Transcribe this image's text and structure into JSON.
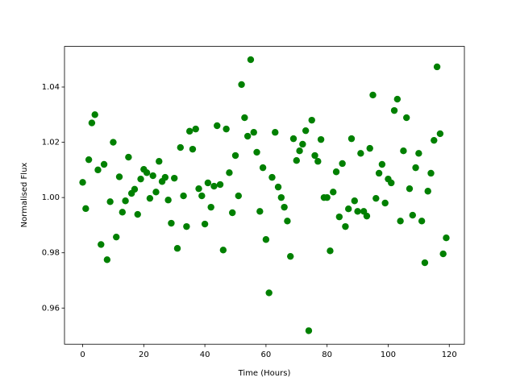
{
  "chart_data": {
    "type": "scatter",
    "xlabel": "Time (Hours)",
    "ylabel": "Normalised Flux",
    "color": "#008000",
    "x": [
      0,
      1,
      2,
      3,
      4,
      5,
      6,
      7,
      8,
      9,
      10,
      11,
      12,
      13,
      14,
      15,
      16,
      17,
      18,
      19,
      20,
      21,
      22,
      23,
      24,
      25,
      26,
      27,
      28,
      29,
      30,
      31,
      32,
      33,
      34,
      35,
      36,
      37,
      38,
      39,
      40,
      41,
      42,
      43,
      44,
      45,
      46,
      47,
      48,
      49,
      50,
      51,
      52,
      53,
      54,
      55,
      56,
      57,
      58,
      59,
      60,
      61,
      62,
      63,
      64,
      65,
      66,
      67,
      68,
      69,
      70,
      71,
      72,
      73,
      74,
      75,
      76,
      77,
      78,
      79,
      80,
      81,
      82,
      83,
      84,
      85,
      86,
      87,
      88,
      89,
      90,
      91,
      92,
      93,
      94,
      95,
      96,
      97,
      98,
      99,
      100,
      101,
      102,
      103,
      104,
      105,
      106,
      107,
      108,
      109,
      110,
      111,
      112,
      113,
      114,
      115,
      116,
      117,
      118,
      119
    ],
    "values": [
      1.0055,
      0.996,
      1.0137,
      1.027,
      1.03,
      1.01,
      0.983,
      1.012,
      0.9775,
      0.9985,
      1.02,
      0.9857,
      1.0075,
      0.9947,
      0.9988,
      1.0146,
      1.0015,
      1.003,
      0.9939,
      1.0067,
      1.0102,
      1.009,
      0.9997,
      1.0079,
      1.002,
      1.0131,
      1.0058,
      1.0073,
      0.9991,
      0.9907,
      1.007,
      0.9816,
      1.0181,
      1.0006,
      0.9895,
      1.024,
      1.0175,
      1.0248,
      1.0032,
      1.0006,
      0.9904,
      1.0053,
      0.9965,
      1.0041,
      1.026,
      1.0047,
      0.981,
      1.0248,
      1.009,
      0.9945,
      1.0152,
      1.0006,
      1.0409,
      1.0289,
      1.0222,
      1.0499,
      1.0236,
      1.0164,
      0.995,
      1.0108,
      0.9848,
      0.9655,
      1.0073,
      1.0236,
      1.0038,
      1.0,
      0.9965,
      0.9915,
      0.9787,
      1.0213,
      1.0134,
      1.0169,
      1.0193,
      1.0242,
      0.9518,
      1.028,
      1.0152,
      1.0131,
      1.021,
      1.0,
      1.0,
      0.9807,
      1.002,
      1.0093,
      0.993,
      1.0123,
      0.9895,
      0.9959,
      1.0213,
      0.9988,
      0.995,
      1.016,
      0.995,
      0.9933,
      1.0178,
      1.0371,
      0.9997,
      1.0088,
      1.012,
      0.998,
      1.0067,
      1.0053,
      1.0315,
      1.0356,
      0.9915,
      1.0169,
      1.0289,
      1.0032,
      0.9936,
      1.0108,
      1.016,
      0.9915,
      0.9764,
      1.0023,
      1.0088,
      1.0207,
      1.0473,
      1.0231,
      0.9796,
      0.9854
    ],
    "xlim": [
      -5.95,
      124.95
    ],
    "ylim": [
      0.9469,
      1.0547
    ],
    "xticks": [
      0,
      20,
      40,
      60,
      80,
      100,
      120
    ],
    "yticks": [
      0.96,
      0.98,
      {
        "value": 1.0,
        "label": "1.00"
      },
      1.02,
      1.04
    ]
  }
}
